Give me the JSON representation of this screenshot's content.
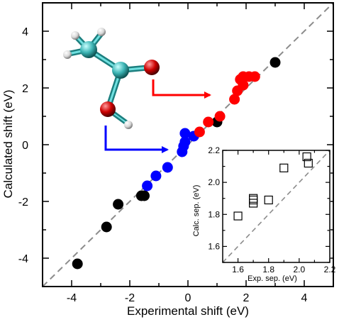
{
  "chart_data": [
    {
      "type": "scatter",
      "title": "",
      "xlabel": "Experimental shift (eV)",
      "ylabel": "Calculated shift (eV)",
      "xlim": [
        -5,
        5
      ],
      "ylim": [
        -5,
        5
      ],
      "xticks": [
        "-4",
        "-2",
        "0",
        "2",
        "4"
      ],
      "yticks": [
        "-4",
        "-2",
        "0",
        "2",
        "4"
      ],
      "reference_line": "y = x (dashed gray)",
      "series": [
        {
          "color": "#000000",
          "points": [
            [
              -3.8,
              -4.2
            ],
            [
              -2.8,
              -2.9
            ],
            [
              -2.4,
              -2.1
            ],
            [
              -1.6,
              -1.8
            ],
            [
              -1.5,
              -1.8
            ],
            [
              1.0,
              0.8
            ],
            [
              3.0,
              2.9
            ]
          ]
        },
        {
          "color": "#0000ff",
          "points": [
            [
              -1.4,
              -1.45
            ],
            [
              -1.1,
              -1.1
            ],
            [
              -0.7,
              -0.8
            ],
            [
              -0.2,
              -0.25
            ],
            [
              -0.15,
              -0.05
            ],
            [
              -0.1,
              0.1
            ],
            [
              -0.1,
              0.4
            ],
            [
              0.2,
              0.3
            ]
          ]
        },
        {
          "color": "#ff0000",
          "points": [
            [
              0.4,
              0.45
            ],
            [
              0.7,
              0.8
            ],
            [
              1.1,
              1.0
            ],
            [
              1.6,
              1.6
            ],
            [
              1.7,
              1.9
            ],
            [
              1.8,
              2.3
            ],
            [
              1.9,
              2.1
            ],
            [
              1.9,
              2.4
            ],
            [
              2.1,
              2.4
            ],
            [
              2.3,
              2.4
            ]
          ]
        }
      ]
    },
    {
      "type": "scatter",
      "title": "",
      "xlabel": "Exp. sep. (eV)",
      "ylabel": "Calc. sep. (eV)",
      "xlim": [
        1.5,
        2.2
      ],
      "ylim": [
        1.5,
        2.2
      ],
      "xticks": [
        "1.6",
        "1.8",
        "2.0",
        "2.2"
      ],
      "yticks": [
        "1.6",
        "1.8",
        "2.0",
        "2.2"
      ],
      "reference_line": "y = x (dashed gray)",
      "marker": "open square",
      "points": [
        [
          1.6,
          1.79
        ],
        [
          1.7,
          1.87
        ],
        [
          1.7,
          1.89
        ],
        [
          1.7,
          1.9
        ],
        [
          1.8,
          1.89
        ],
        [
          1.9,
          2.09
        ],
        [
          2.05,
          2.16
        ],
        [
          2.06,
          2.12
        ]
      ]
    }
  ],
  "annotations": {
    "molecule": "acetic acid (ball-and-stick)",
    "arrows": [
      {
        "from": "carbonyl oxygen",
        "to": "red series",
        "color": "#ff0000"
      },
      {
        "from": "hydroxyl oxygen",
        "to": "blue series",
        "color": "#0000ff"
      }
    ],
    "colors": {
      "carbon": "#40b8b8",
      "oxygen": "#cc0000",
      "hydrogen": "#e8e8e8"
    }
  }
}
